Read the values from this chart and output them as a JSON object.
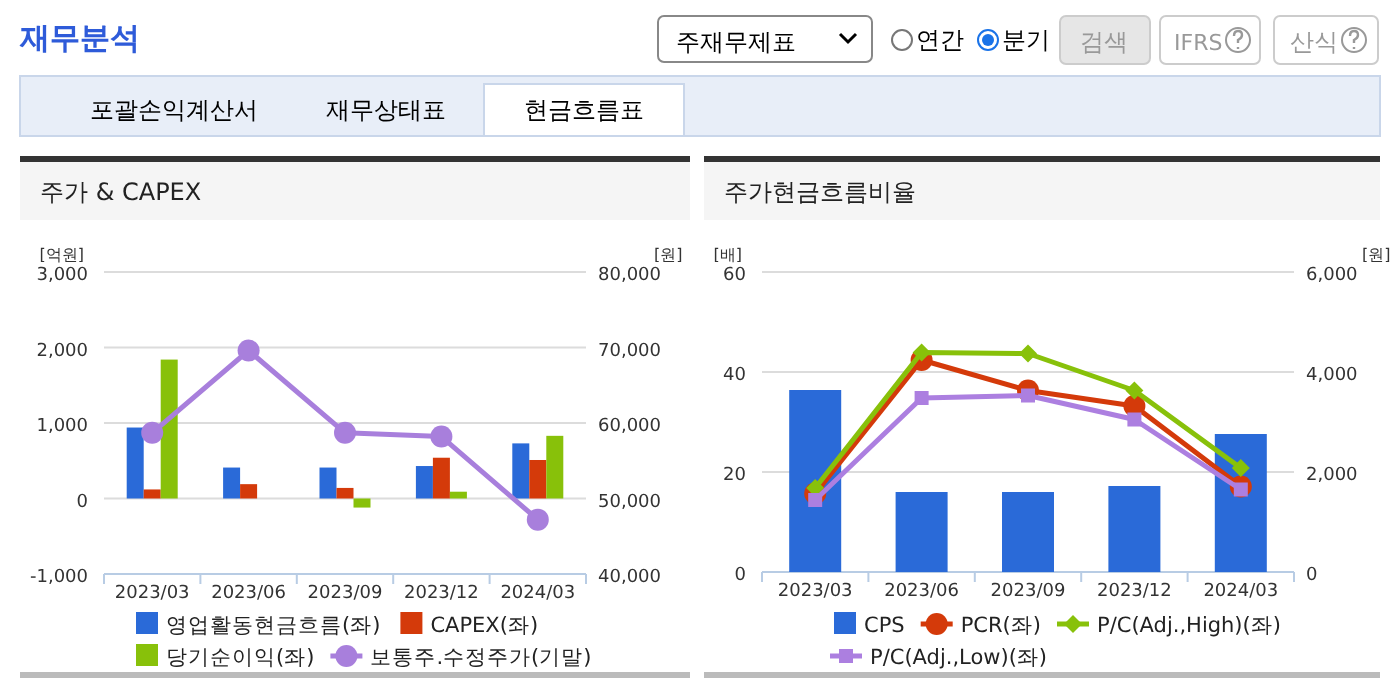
{
  "chart_data": [
    {
      "type": "other",
      "title": "재무분석",
      "annotations": [
        "주재무제표",
        "연간",
        "분기",
        "검색",
        "IFRS",
        "산식",
        "포괄손익계산서",
        "재무상태표",
        "현금흐름표"
      ]
    },
    {
      "type": "bar",
      "title": "주가 & CAPEX",
      "ylabel": "[억원]",
      "y2label": "[원]",
      "categories": [
        "2023/03",
        "2023/06",
        "2023/09",
        "2023/12",
        "2024/03"
      ],
      "series": [
        {
          "name": "영업활동현금흐름(좌)",
          "type": "bar",
          "color": "#2a6ad8",
          "values": [
            940,
            410,
            410,
            430,
            730
          ]
        },
        {
          "name": "CAPEX(좌)",
          "type": "bar",
          "color": "#d43a0a",
          "values": [
            120,
            190,
            140,
            540,
            510
          ]
        },
        {
          "name": "당기순이익(좌)",
          "type": "bar",
          "color": "#88c10a",
          "values": [
            1840,
            null,
            -120,
            90,
            830
          ]
        },
        {
          "name": "보통주.수정주가(기말)",
          "type": "line",
          "axis": "y2",
          "marker": "circle",
          "color": "#a87fdc",
          "values": [
            58700,
            69600,
            58700,
            58200,
            47200
          ]
        }
      ],
      "ylim": [
        -1000,
        3000
      ],
      "yticks": [
        {
          "value": -1000,
          "label": "-1,000"
        },
        0,
        {
          "value": 1000,
          "label": "1,000"
        },
        {
          "value": 2000,
          "label": "2,000"
        },
        {
          "value": 3000,
          "label": "3,000"
        }
      ],
      "y2lim": [
        40000,
        80000
      ],
      "y2ticks": [
        {
          "value": 40000,
          "label": "40,000"
        },
        {
          "value": 50000,
          "label": "50,000"
        },
        {
          "value": 60000,
          "label": "60,000"
        },
        {
          "value": 70000,
          "label": "70,000"
        },
        {
          "value": 80000,
          "label": "80,000"
        }
      ],
      "grid": "y",
      "legend": "bottom"
    },
    {
      "type": "line",
      "title": "주가현금흐름비율",
      "ylabel": "[배]",
      "y2label": "[원]",
      "categories": [
        "2023/03",
        "2023/06",
        "2023/09",
        "2023/12",
        "2024/03"
      ],
      "series": [
        {
          "name": "CPS",
          "type": "bar",
          "axis": "y2",
          "color": "#2a6ad8",
          "values": [
            3640,
            1600,
            1600,
            1720,
            2760
          ]
        },
        {
          "name": "PCR(좌)",
          "type": "line",
          "marker": "circle",
          "color": "#d43a0a",
          "values": [
            15.7,
            42.4,
            36.3,
            33.2,
            17.1
          ]
        },
        {
          "name": "P/C(Adj.,High)(좌)",
          "type": "line",
          "marker": "diamond",
          "color": "#88c10a",
          "values": [
            16.8,
            43.9,
            43.7,
            36.3,
            20.8
          ]
        },
        {
          "name": "P/C(Adj.,Low)(좌)",
          "type": "line",
          "marker": "square",
          "color": "#ac7fe0",
          "values": [
            14.4,
            34.8,
            35.3,
            30.5,
            16.5
          ]
        }
      ],
      "ylim": [
        0,
        60
      ],
      "yticks": [
        0,
        20,
        40,
        60
      ],
      "y2lim": [
        0,
        6000
      ],
      "y2ticks": [
        0,
        {
          "value": 2000,
          "label": "2,000"
        },
        {
          "value": 4000,
          "label": "4,000"
        },
        {
          "value": 6000,
          "label": "6,000"
        }
      ],
      "grid": "y",
      "legend": "bottom"
    }
  ]
}
